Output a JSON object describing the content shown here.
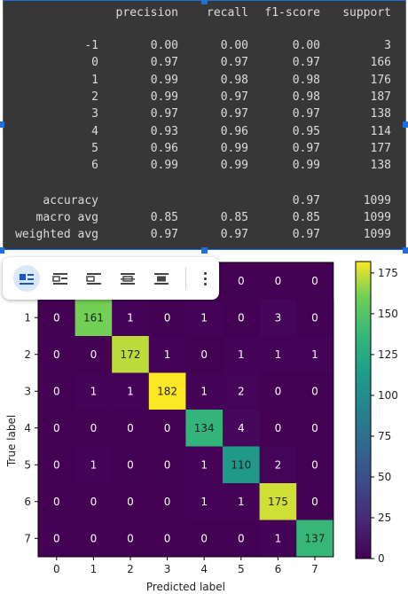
{
  "report": {
    "headers": [
      "precision",
      "recall",
      "f1-score",
      "support"
    ],
    "rows": [
      {
        "label": "-1",
        "precision": "0.00",
        "recall": "0.00",
        "f1": "0.00",
        "support": "3"
      },
      {
        "label": "0",
        "precision": "0.97",
        "recall": "0.97",
        "f1": "0.97",
        "support": "166"
      },
      {
        "label": "1",
        "precision": "0.99",
        "recall": "0.98",
        "f1": "0.98",
        "support": "176"
      },
      {
        "label": "2",
        "precision": "0.99",
        "recall": "0.97",
        "f1": "0.98",
        "support": "187"
      },
      {
        "label": "3",
        "precision": "0.97",
        "recall": "0.97",
        "f1": "0.97",
        "support": "138"
      },
      {
        "label": "4",
        "precision": "0.93",
        "recall": "0.96",
        "f1": "0.95",
        "support": "114"
      },
      {
        "label": "5",
        "precision": "0.96",
        "recall": "0.99",
        "f1": "0.97",
        "support": "177"
      },
      {
        "label": "6",
        "precision": "0.99",
        "recall": "0.99",
        "f1": "0.99",
        "support": "138"
      }
    ],
    "summary": [
      {
        "label": "accuracy",
        "precision": "",
        "recall": "",
        "f1": "0.97",
        "support": "1099"
      },
      {
        "label": "macro avg",
        "precision": "0.85",
        "recall": "0.85",
        "f1": "0.85",
        "support": "1099"
      },
      {
        "label": "weighted avg",
        "precision": "0.97",
        "recall": "0.97",
        "f1": "0.97",
        "support": "1099"
      }
    ]
  },
  "toolbar": {
    "buttons": [
      {
        "icon": "align-inline-icon",
        "active": true
      },
      {
        "icon": "wrap-text-icon",
        "active": false
      },
      {
        "icon": "break-text-icon",
        "active": false
      },
      {
        "icon": "align-center-icon",
        "active": false
      },
      {
        "icon": "full-width-icon",
        "active": false
      }
    ],
    "more_icon": "more-options-icon"
  },
  "chart_data": {
    "type": "heatmap",
    "xlabel": "Predicted label",
    "ylabel": "True label",
    "x_tick_labels": [
      "0",
      "1",
      "2",
      "3",
      "4",
      "5",
      "6",
      "7"
    ],
    "y_tick_labels_visible": [
      "1",
      "2",
      "3",
      "4",
      "5",
      "6",
      "7"
    ],
    "visible_row0_values": [
      "0",
      "0",
      "0"
    ],
    "rows": [
      {
        "label": "1",
        "values": [
          0,
          161,
          1,
          0,
          1,
          0,
          3,
          0
        ]
      },
      {
        "label": "2",
        "values": [
          0,
          0,
          172,
          1,
          0,
          1,
          1,
          1
        ]
      },
      {
        "label": "3",
        "values": [
          0,
          1,
          1,
          182,
          1,
          2,
          0,
          0
        ]
      },
      {
        "label": "4",
        "values": [
          0,
          0,
          0,
          0,
          134,
          4,
          0,
          0
        ]
      },
      {
        "label": "5",
        "values": [
          0,
          1,
          0,
          0,
          1,
          110,
          2,
          0
        ]
      },
      {
        "label": "6",
        "values": [
          0,
          0,
          0,
          0,
          1,
          1,
          175,
          0
        ]
      },
      {
        "label": "7",
        "values": [
          0,
          0,
          0,
          0,
          0,
          0,
          1,
          137
        ]
      }
    ],
    "colorbar": {
      "min": 0,
      "max": 182,
      "ticks": [
        0,
        25,
        50,
        75,
        100,
        125,
        150,
        175
      ]
    },
    "colormap": "viridis"
  }
}
